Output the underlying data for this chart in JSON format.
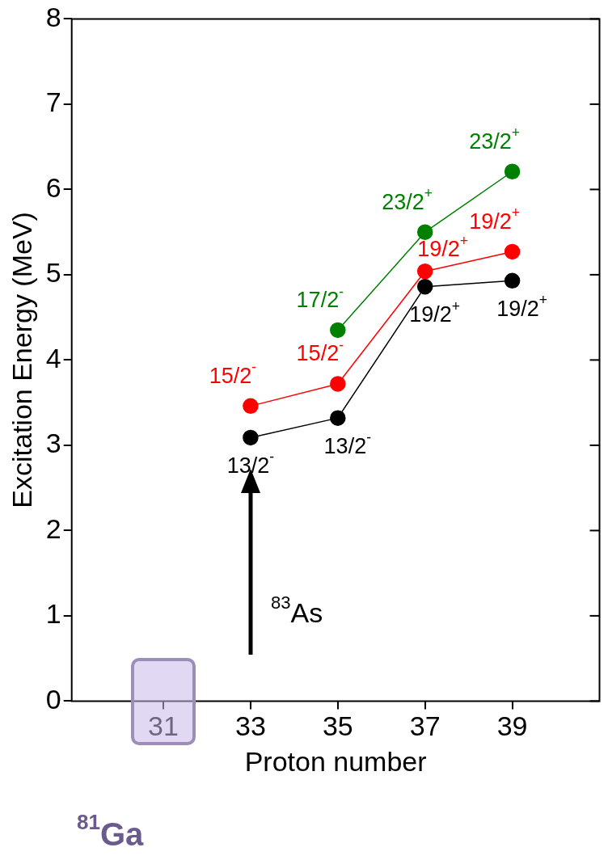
{
  "chart_data": {
    "type": "line",
    "xlabel": "Proton number",
    "ylabel": "Excitation Energy (MeV)",
    "x": [
      33,
      35,
      37,
      39
    ],
    "xlim": [
      28.9,
      41
    ],
    "xticks": [
      31,
      33,
      35,
      37,
      39
    ],
    "ylim": [
      0,
      8
    ],
    "yticks": [
      0,
      1,
      2,
      3,
      4,
      5,
      6,
      7,
      8
    ],
    "grid": false,
    "legend": false,
    "marker": "circle",
    "line_style": "solid",
    "series": [
      {
        "color": "#000000",
        "values": [
          3.09,
          3.32,
          4.86,
          4.93
        ],
        "value_labels": [
          "13/2$^{-}$",
          "13/2$^{-}$",
          "19/2$^{+}$",
          "19/2$^{+}$"
        ]
      },
      {
        "color": "#ff0000",
        "values": [
          3.46,
          3.72,
          5.04,
          5.27
        ],
        "value_labels": [
          "15/2$^{-}$",
          "15/2$^{-}$",
          "19/2$^{+}$",
          "19/2$^{+}$"
        ]
      },
      {
        "color": "#008000",
        "values": [
          null,
          4.35,
          5.5,
          6.21
        ],
        "value_labels": [
          null,
          "17/2$^{-}$",
          "23/2$^{+}$",
          "23/2$^{+}$"
        ]
      }
    ],
    "annotations": [
      "$^{83}$As",
      "$^{81}$Ga"
    ]
  }
}
